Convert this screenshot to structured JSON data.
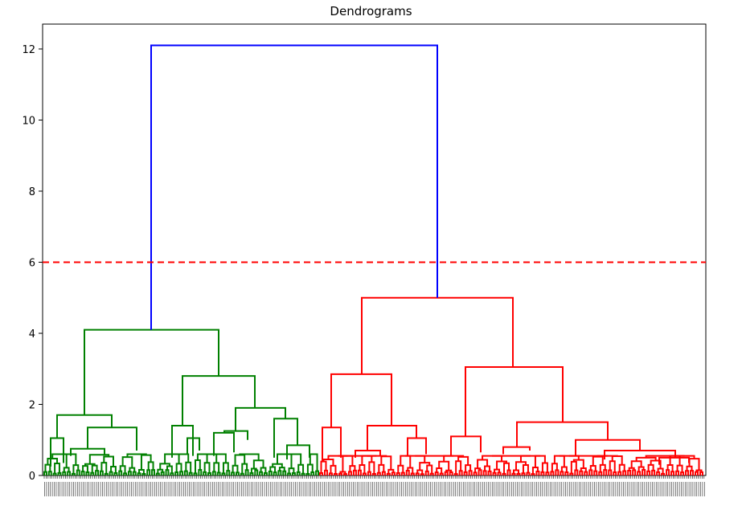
{
  "chart_data": {
    "type": "dendrogram",
    "title": "Dendrograms",
    "xlabel": "",
    "ylabel": "",
    "ylim": [
      0,
      12.7
    ],
    "yticks": [
      0,
      2,
      4,
      6,
      8,
      10,
      12
    ],
    "grid": false,
    "colors": {
      "cluster_1": "#008000",
      "cluster_2": "#ff0000",
      "root_link": "#0000ff",
      "threshold": "#ff0000"
    },
    "threshold": 6,
    "root_merge_height": 12.1,
    "merges": [
      {
        "left_cluster": "cluster_1",
        "height": 4.1
      },
      {
        "left_cluster": "cluster_2",
        "height": 5.0
      }
    ],
    "cluster_1_subtree_heights": [
      4.1,
      2.8,
      1.9,
      1.7,
      1.6,
      1.4,
      1.35,
      1.2,
      1.05,
      0.85
    ],
    "cluster_2_subtree_heights": [
      5.0,
      3.05,
      2.85,
      1.5,
      1.4,
      1.35,
      1.05,
      1.0,
      0.7,
      0.5
    ]
  }
}
